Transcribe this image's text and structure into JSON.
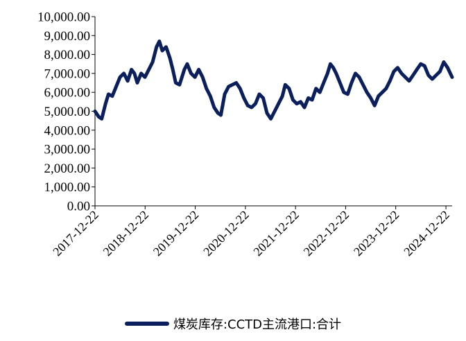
{
  "chart_data": {
    "type": "line",
    "title": "",
    "xlabel": "",
    "ylabel": "",
    "ylim": [
      0,
      10000
    ],
    "yticks": [
      "0.00",
      "1,000.00",
      "2,000.00",
      "3,000.00",
      "4,000.00",
      "5,000.00",
      "6,000.00",
      "7,000.00",
      "8,000.00",
      "9,000.00",
      "10,000.00"
    ],
    "xticks": [
      "2017-12-22",
      "2018-12-22",
      "2019-12-22",
      "2020-12-22",
      "2021-12-22",
      "2022-12-22",
      "2023-12-22",
      "2024-12-22"
    ],
    "xlim": [
      "2017-12-22",
      "2025-02-05"
    ],
    "grid": false,
    "legend_position": "bottom",
    "series": [
      {
        "name": "煤炭库存:CCTD主流港口:合计",
        "color": "#0b1f5c",
        "points": [
          [
            "2017-12-22",
            5000
          ],
          [
            "2018-01-19",
            4700
          ],
          [
            "2018-02-09",
            4600
          ],
          [
            "2018-03-09",
            5400
          ],
          [
            "2018-03-30",
            5900
          ],
          [
            "2018-04-27",
            5800
          ],
          [
            "2018-05-25",
            6300
          ],
          [
            "2018-06-22",
            6800
          ],
          [
            "2018-07-20",
            7000
          ],
          [
            "2018-08-17",
            6600
          ],
          [
            "2018-09-14",
            7200
          ],
          [
            "2018-10-05",
            7000
          ],
          [
            "2018-10-26",
            6500
          ],
          [
            "2018-11-23",
            7000
          ],
          [
            "2018-12-21",
            6800
          ],
          [
            "2019-01-18",
            7200
          ],
          [
            "2019-02-15",
            7600
          ],
          [
            "2019-03-15",
            8400
          ],
          [
            "2019-04-05",
            8700
          ],
          [
            "2019-04-26",
            8200
          ],
          [
            "2019-05-24",
            8400
          ],
          [
            "2019-06-21",
            7800
          ],
          [
            "2019-07-12",
            7200
          ],
          [
            "2019-08-02",
            6500
          ],
          [
            "2019-08-30",
            6400
          ],
          [
            "2019-10-04",
            7200
          ],
          [
            "2019-10-25",
            7500
          ],
          [
            "2019-11-22",
            7000
          ],
          [
            "2019-12-20",
            6800
          ],
          [
            "2020-01-17",
            7200
          ],
          [
            "2020-02-14",
            6800
          ],
          [
            "2020-03-13",
            6200
          ],
          [
            "2020-04-10",
            5800
          ],
          [
            "2020-05-08",
            5200
          ],
          [
            "2020-06-05",
            4900
          ],
          [
            "2020-06-26",
            4800
          ],
          [
            "2020-07-24",
            5900
          ],
          [
            "2020-08-21",
            6300
          ],
          [
            "2020-09-18",
            6400
          ],
          [
            "2020-10-16",
            6500
          ],
          [
            "2020-11-13",
            6200
          ],
          [
            "2020-12-11",
            5700
          ],
          [
            "2021-01-08",
            5300
          ],
          [
            "2021-02-05",
            5200
          ],
          [
            "2021-03-05",
            5400
          ],
          [
            "2021-04-02",
            5900
          ],
          [
            "2021-04-30",
            5700
          ],
          [
            "2021-05-28",
            4900
          ],
          [
            "2021-06-25",
            4600
          ],
          [
            "2021-07-23",
            5000
          ],
          [
            "2021-08-20",
            5400
          ],
          [
            "2021-09-17",
            5800
          ],
          [
            "2021-10-08",
            6400
          ],
          [
            "2021-11-05",
            6200
          ],
          [
            "2021-12-03",
            5600
          ],
          [
            "2021-12-31",
            5400
          ],
          [
            "2022-01-28",
            5500
          ],
          [
            "2022-02-25",
            5200
          ],
          [
            "2022-03-25",
            5700
          ],
          [
            "2022-04-22",
            5600
          ],
          [
            "2022-05-20",
            6200
          ],
          [
            "2022-06-17",
            6000
          ],
          [
            "2022-07-15",
            6500
          ],
          [
            "2022-08-12",
            7000
          ],
          [
            "2022-09-02",
            7500
          ],
          [
            "2022-09-23",
            7300
          ],
          [
            "2022-10-14",
            7000
          ],
          [
            "2022-11-11",
            6500
          ],
          [
            "2022-12-09",
            6000
          ],
          [
            "2023-01-06",
            5900
          ],
          [
            "2023-02-03",
            6500
          ],
          [
            "2023-03-03",
            7000
          ],
          [
            "2023-03-31",
            6800
          ],
          [
            "2023-04-28",
            6400
          ],
          [
            "2023-05-26",
            6000
          ],
          [
            "2023-06-23",
            5700
          ],
          [
            "2023-07-21",
            5300
          ],
          [
            "2023-08-18",
            5800
          ],
          [
            "2023-09-15",
            6000
          ],
          [
            "2023-10-13",
            6200
          ],
          [
            "2023-11-10",
            6600
          ],
          [
            "2023-12-08",
            7100
          ],
          [
            "2024-01-05",
            7300
          ],
          [
            "2024-02-02",
            7000
          ],
          [
            "2024-03-01",
            6800
          ],
          [
            "2024-03-29",
            6600
          ],
          [
            "2024-04-26",
            6900
          ],
          [
            "2024-05-24",
            7200
          ],
          [
            "2024-06-21",
            7500
          ],
          [
            "2024-07-19",
            7400
          ],
          [
            "2024-08-16",
            6900
          ],
          [
            "2024-09-13",
            6700
          ],
          [
            "2024-10-11",
            6900
          ],
          [
            "2024-11-08",
            7100
          ],
          [
            "2024-12-06",
            7600
          ],
          [
            "2025-01-03",
            7300
          ],
          [
            "2025-02-05",
            6800
          ]
        ]
      }
    ]
  }
}
